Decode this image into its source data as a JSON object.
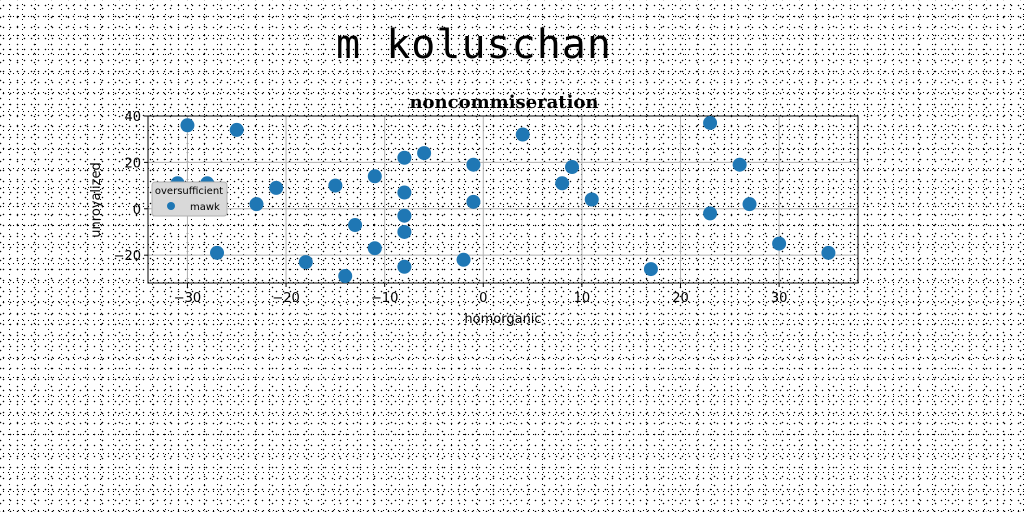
{
  "page": {
    "title": "m koluschan"
  },
  "chart_data": {
    "type": "scatter",
    "title": "noncommiseration",
    "xlabel": "homorganic",
    "ylabel": "unroyalized",
    "xlim": [
      -34,
      38
    ],
    "ylim": [
      -32,
      40
    ],
    "xticks": [
      -30,
      -20,
      -10,
      0,
      10,
      20,
      30
    ],
    "yticks": [
      -20,
      0,
      20,
      40
    ],
    "grid": true,
    "color": "#1f77b4",
    "legend": {
      "title": "oversufficient",
      "position": "center-left"
    },
    "series": [
      {
        "name": "mawk",
        "x": [
          -30,
          -25,
          -31,
          -28,
          -21,
          -23,
          -27,
          -18,
          -15,
          -13,
          -14,
          -11,
          -11,
          -8,
          -8,
          -8,
          -8,
          -8,
          -6,
          -2,
          -1,
          -1,
          4,
          8,
          9,
          11,
          17,
          23,
          23,
          26,
          27,
          30,
          35
        ],
        "y": [
          36,
          34,
          11,
          11,
          9,
          2,
          -19,
          -23,
          10,
          -7,
          -29,
          14,
          -17,
          22,
          7,
          -3,
          -10,
          -25,
          24,
          -22,
          19,
          3,
          32,
          11,
          18,
          4,
          -26,
          37,
          -2,
          19,
          2,
          -15,
          -19
        ]
      }
    ]
  }
}
